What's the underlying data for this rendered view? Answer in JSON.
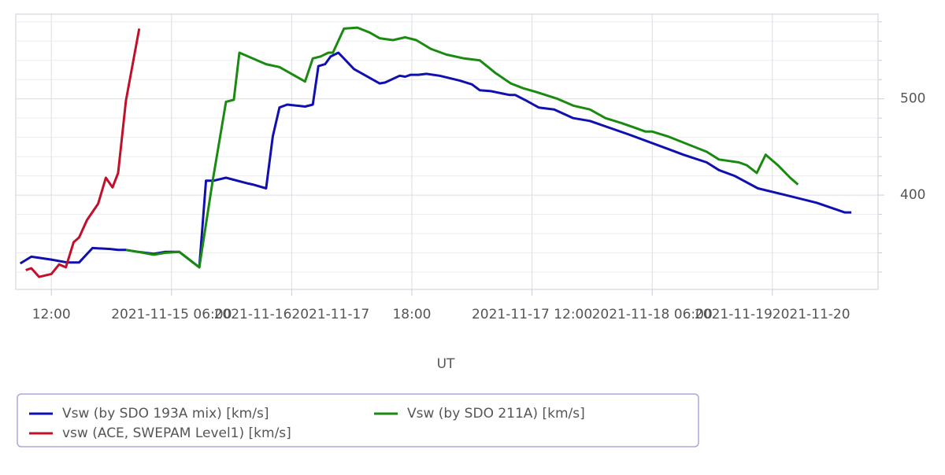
{
  "chart_data": {
    "type": "line",
    "x_label": "UT",
    "xlim": [
      "2021-11-14 06:40",
      "2021-11-19 15:50"
    ],
    "xticks": [
      {
        "value": "2021-11-14 12:00",
        "label": "12:00"
      },
      {
        "value": "2021-11-15 06:00",
        "label": "2021-11-15 06:00"
      },
      {
        "value": "2021-11-16 00:00",
        "label": "2021-11-162021-11-17"
      },
      {
        "value": "2021-11-16 18:00",
        "label": "18:00"
      },
      {
        "value": "2021-11-17 12:00",
        "label": "2021-11-17 12:00"
      },
      {
        "value": "2021-11-18 06:00",
        "label": "2021-11-18 06:00"
      },
      {
        "value": "2021-11-19 00:00",
        "label": "2021-11-192021-11-20"
      }
    ],
    "ylim": [
      302,
      588
    ],
    "yticks": [
      400,
      500
    ],
    "y_minor_ticks": [
      320,
      340,
      360,
      380,
      420,
      440,
      460,
      480,
      520,
      540,
      560,
      580
    ],
    "grid": true,
    "series": [
      {
        "name": "Vsw (by SDO 193A mix) [km/s]",
        "color": "#1010b0",
        "x": [
          "2021-11-14 07:20",
          "2021-11-14 09:00",
          "2021-11-14 12:00",
          "2021-11-14 14:20",
          "2021-11-14 16:10",
          "2021-11-14 18:10",
          "2021-11-14 20:50",
          "2021-11-14 22:00",
          "2021-11-14 23:10",
          "2021-11-15 01:00",
          "2021-11-15 03:20",
          "2021-11-15 05:00",
          "2021-11-15 07:10",
          "2021-11-15 10:10",
          "2021-11-15 11:10",
          "2021-11-15 12:20",
          "2021-11-15 14:10",
          "2021-11-15 17:30",
          "2021-11-15 18:10",
          "2021-11-15 20:10",
          "2021-11-15 21:10",
          "2021-11-15 22:10",
          "2021-11-15 23:20",
          "2021-11-16 02:00",
          "2021-11-16 03:10",
          "2021-11-16 04:00",
          "2021-11-16 05:00",
          "2021-11-16 05:50",
          "2021-11-16 07:00",
          "2021-11-16 09:20",
          "2021-11-16 13:10",
          "2021-11-16 14:00",
          "2021-11-16 16:10",
          "2021-11-16 17:00",
          "2021-11-16 17:50",
          "2021-11-16 19:00",
          "2021-11-16 20:10",
          "2021-11-16 22:10",
          "2021-11-17 01:10",
          "2021-11-17 03:00",
          "2021-11-17 04:10",
          "2021-11-17 05:50",
          "2021-11-17 08:40",
          "2021-11-17 09:30",
          "2021-11-17 11:10",
          "2021-11-17 13:00",
          "2021-11-17 15:20",
          "2021-11-17 18:10",
          "2021-11-17 20:40",
          "2021-11-18 02:30",
          "2021-11-18 08:20",
          "2021-11-18 10:40",
          "2021-11-18 14:10",
          "2021-11-18 16:00",
          "2021-11-18 18:20",
          "2021-11-18 21:50",
          "2021-11-19 02:00",
          "2021-11-19 06:40",
          "2021-11-19 10:50",
          "2021-11-19 11:50"
        ],
        "values": [
          329,
          336,
          333,
          330,
          330,
          345,
          344,
          343,
          343,
          341,
          339,
          341,
          341,
          325,
          415,
          415,
          418,
          412,
          411,
          407,
          461,
          491,
          494,
          492,
          494,
          534,
          536,
          544,
          548,
          531,
          516,
          517,
          524,
          523,
          525,
          525,
          526,
          524,
          519,
          515,
          509,
          508,
          504,
          504,
          498,
          491,
          489,
          480,
          477,
          463,
          448,
          442,
          434,
          426,
          420,
          407,
          400,
          392,
          382,
          382
        ]
      },
      {
        "name": "vsw (ACE, SWEPAM Level1) [km/s]",
        "color": "#c0102a",
        "x": [
          "2021-11-14 08:10",
          "2021-11-14 09:00",
          "2021-11-14 10:10",
          "2021-11-14 12:00",
          "2021-11-14 13:10",
          "2021-11-14 14:10",
          "2021-11-14 15:20",
          "2021-11-14 16:10",
          "2021-11-14 17:20",
          "2021-11-14 19:00",
          "2021-11-14 20:10",
          "2021-11-14 21:10",
          "2021-11-14 22:00",
          "2021-11-14 23:10",
          "2021-11-15 01:10"
        ],
        "values": [
          322,
          324,
          315,
          318,
          328,
          325,
          351,
          356,
          374,
          391,
          418,
          408,
          423,
          498,
          573
        ]
      },
      {
        "name": "Vsw (by SDO 211A) [km/s]",
        "color": "#1a8a10",
        "x": [
          "2021-11-14 23:10",
          "2021-11-15 01:00",
          "2021-11-15 03:20",
          "2021-11-15 05:00",
          "2021-11-15 07:10",
          "2021-11-15 10:10",
          "2021-11-15 12:10",
          "2021-11-15 14:10",
          "2021-11-15 15:20",
          "2021-11-15 16:10",
          "2021-11-15 20:10",
          "2021-11-15 22:10",
          "2021-11-16 02:00",
          "2021-11-16 03:10",
          "2021-11-16 04:20",
          "2021-11-16 05:30",
          "2021-11-16 06:10",
          "2021-11-16 07:50",
          "2021-11-16 09:50",
          "2021-11-16 11:40",
          "2021-11-16 13:10",
          "2021-11-16 15:10",
          "2021-11-16 17:00",
          "2021-11-16 18:40",
          "2021-11-16 20:50",
          "2021-11-16 23:10",
          "2021-11-17 01:50",
          "2021-11-17 04:10",
          "2021-11-17 06:30",
          "2021-11-17 08:50",
          "2021-11-17 10:40",
          "2021-11-17 12:40",
          "2021-11-17 15:50",
          "2021-11-17 18:10",
          "2021-11-17 20:40",
          "2021-11-17 23:00",
          "2021-11-18 01:20",
          "2021-11-18 03:00",
          "2021-11-18 05:00",
          "2021-11-18 06:00",
          "2021-11-18 08:20",
          "2021-11-18 14:10",
          "2021-11-18 16:00",
          "2021-11-18 19:00",
          "2021-11-18 20:10",
          "2021-11-18 21:40",
          "2021-11-18 23:00",
          "2021-11-19 00:50",
          "2021-11-19 02:40",
          "2021-11-19 03:50"
        ],
        "values": [
          343,
          341,
          338,
          340,
          341,
          325,
          415,
          497,
          499,
          548,
          536,
          533,
          518,
          542,
          544,
          548,
          548,
          573,
          574,
          569,
          563,
          561,
          564,
          561,
          552,
          546,
          542,
          540,
          527,
          516,
          511,
          507,
          500,
          493,
          489,
          480,
          475,
          471,
          466,
          466,
          461,
          445,
          437,
          434,
          431,
          423,
          442,
          431,
          418,
          411
        ]
      }
    ]
  }
}
